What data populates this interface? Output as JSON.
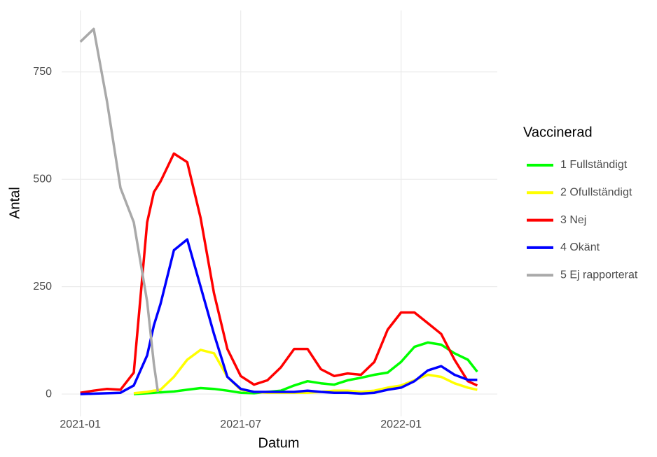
{
  "chart_data": {
    "type": "line",
    "x_label": "Datum",
    "y_label": "Antal",
    "legend_title": "Vaccinerad",
    "legend_position": "right",
    "grid": true,
    "x": [
      0,
      0.5,
      1,
      1.5,
      2,
      2.5,
      2.75,
      2.9,
      3,
      3.5,
      4,
      4.5,
      5,
      5.5,
      6,
      6.5,
      7,
      7.5,
      8,
      8.5,
      9,
      9.5,
      10,
      10.5,
      11,
      11.5,
      12,
      12.5,
      13,
      13.5,
      14,
      14.5,
      14.85
    ],
    "xlim": [
      -0.7,
      15.6
    ],
    "xticks": [
      {
        "value": 0,
        "label": "2021-01"
      },
      {
        "value": 6,
        "label": "2021-07"
      },
      {
        "value": 12,
        "label": "2022-01"
      }
    ],
    "ylim": [
      -52,
      893
    ],
    "yticks": [
      0,
      250,
      500,
      750
    ],
    "series": [
      {
        "name": "1 Fullständigt",
        "color": "#00ff00",
        "values": [
          null,
          null,
          null,
          null,
          0,
          2,
          3,
          4,
          4,
          6,
          10,
          14,
          12,
          8,
          3,
          2,
          5,
          8,
          20,
          30,
          25,
          22,
          32,
          38,
          45,
          50,
          75,
          110,
          120,
          115,
          95,
          80,
          52
        ]
      },
      {
        "name": "2 Ofullständigt",
        "color": "#ffff00",
        "values": [
          null,
          null,
          null,
          null,
          2,
          5,
          8,
          9,
          10,
          40,
          80,
          103,
          95,
          40,
          10,
          5,
          3,
          3,
          3,
          3,
          5,
          8,
          8,
          5,
          8,
          15,
          20,
          32,
          45,
          40,
          25,
          15,
          10
        ]
      },
      {
        "name": "3 Nej",
        "color": "#ff0000",
        "values": [
          3,
          8,
          12,
          10,
          50,
          400,
          470,
          485,
          495,
          560,
          540,
          410,
          235,
          105,
          42,
          22,
          32,
          62,
          105,
          105,
          58,
          42,
          48,
          45,
          75,
          150,
          190,
          190,
          165,
          140,
          80,
          30,
          20
        ]
      },
      {
        "name": "4 Okänt",
        "color": "#0000ff",
        "values": [
          0,
          1,
          2,
          3,
          20,
          90,
          160,
          190,
          210,
          335,
          360,
          250,
          140,
          40,
          12,
          5,
          5,
          5,
          5,
          8,
          5,
          3,
          3,
          1,
          3,
          10,
          15,
          30,
          55,
          65,
          45,
          33,
          33
        ]
      },
      {
        "name": "5 Ej rapporterat",
        "color": "#a9a9a9",
        "values": [
          820,
          850,
          680,
          480,
          400,
          215,
          70,
          5,
          null,
          null,
          null,
          null,
          null,
          null,
          null,
          null,
          null,
          null,
          null,
          null,
          null,
          null,
          null,
          null,
          null,
          null,
          null,
          null,
          null,
          null,
          null,
          null,
          null
        ]
      }
    ]
  }
}
